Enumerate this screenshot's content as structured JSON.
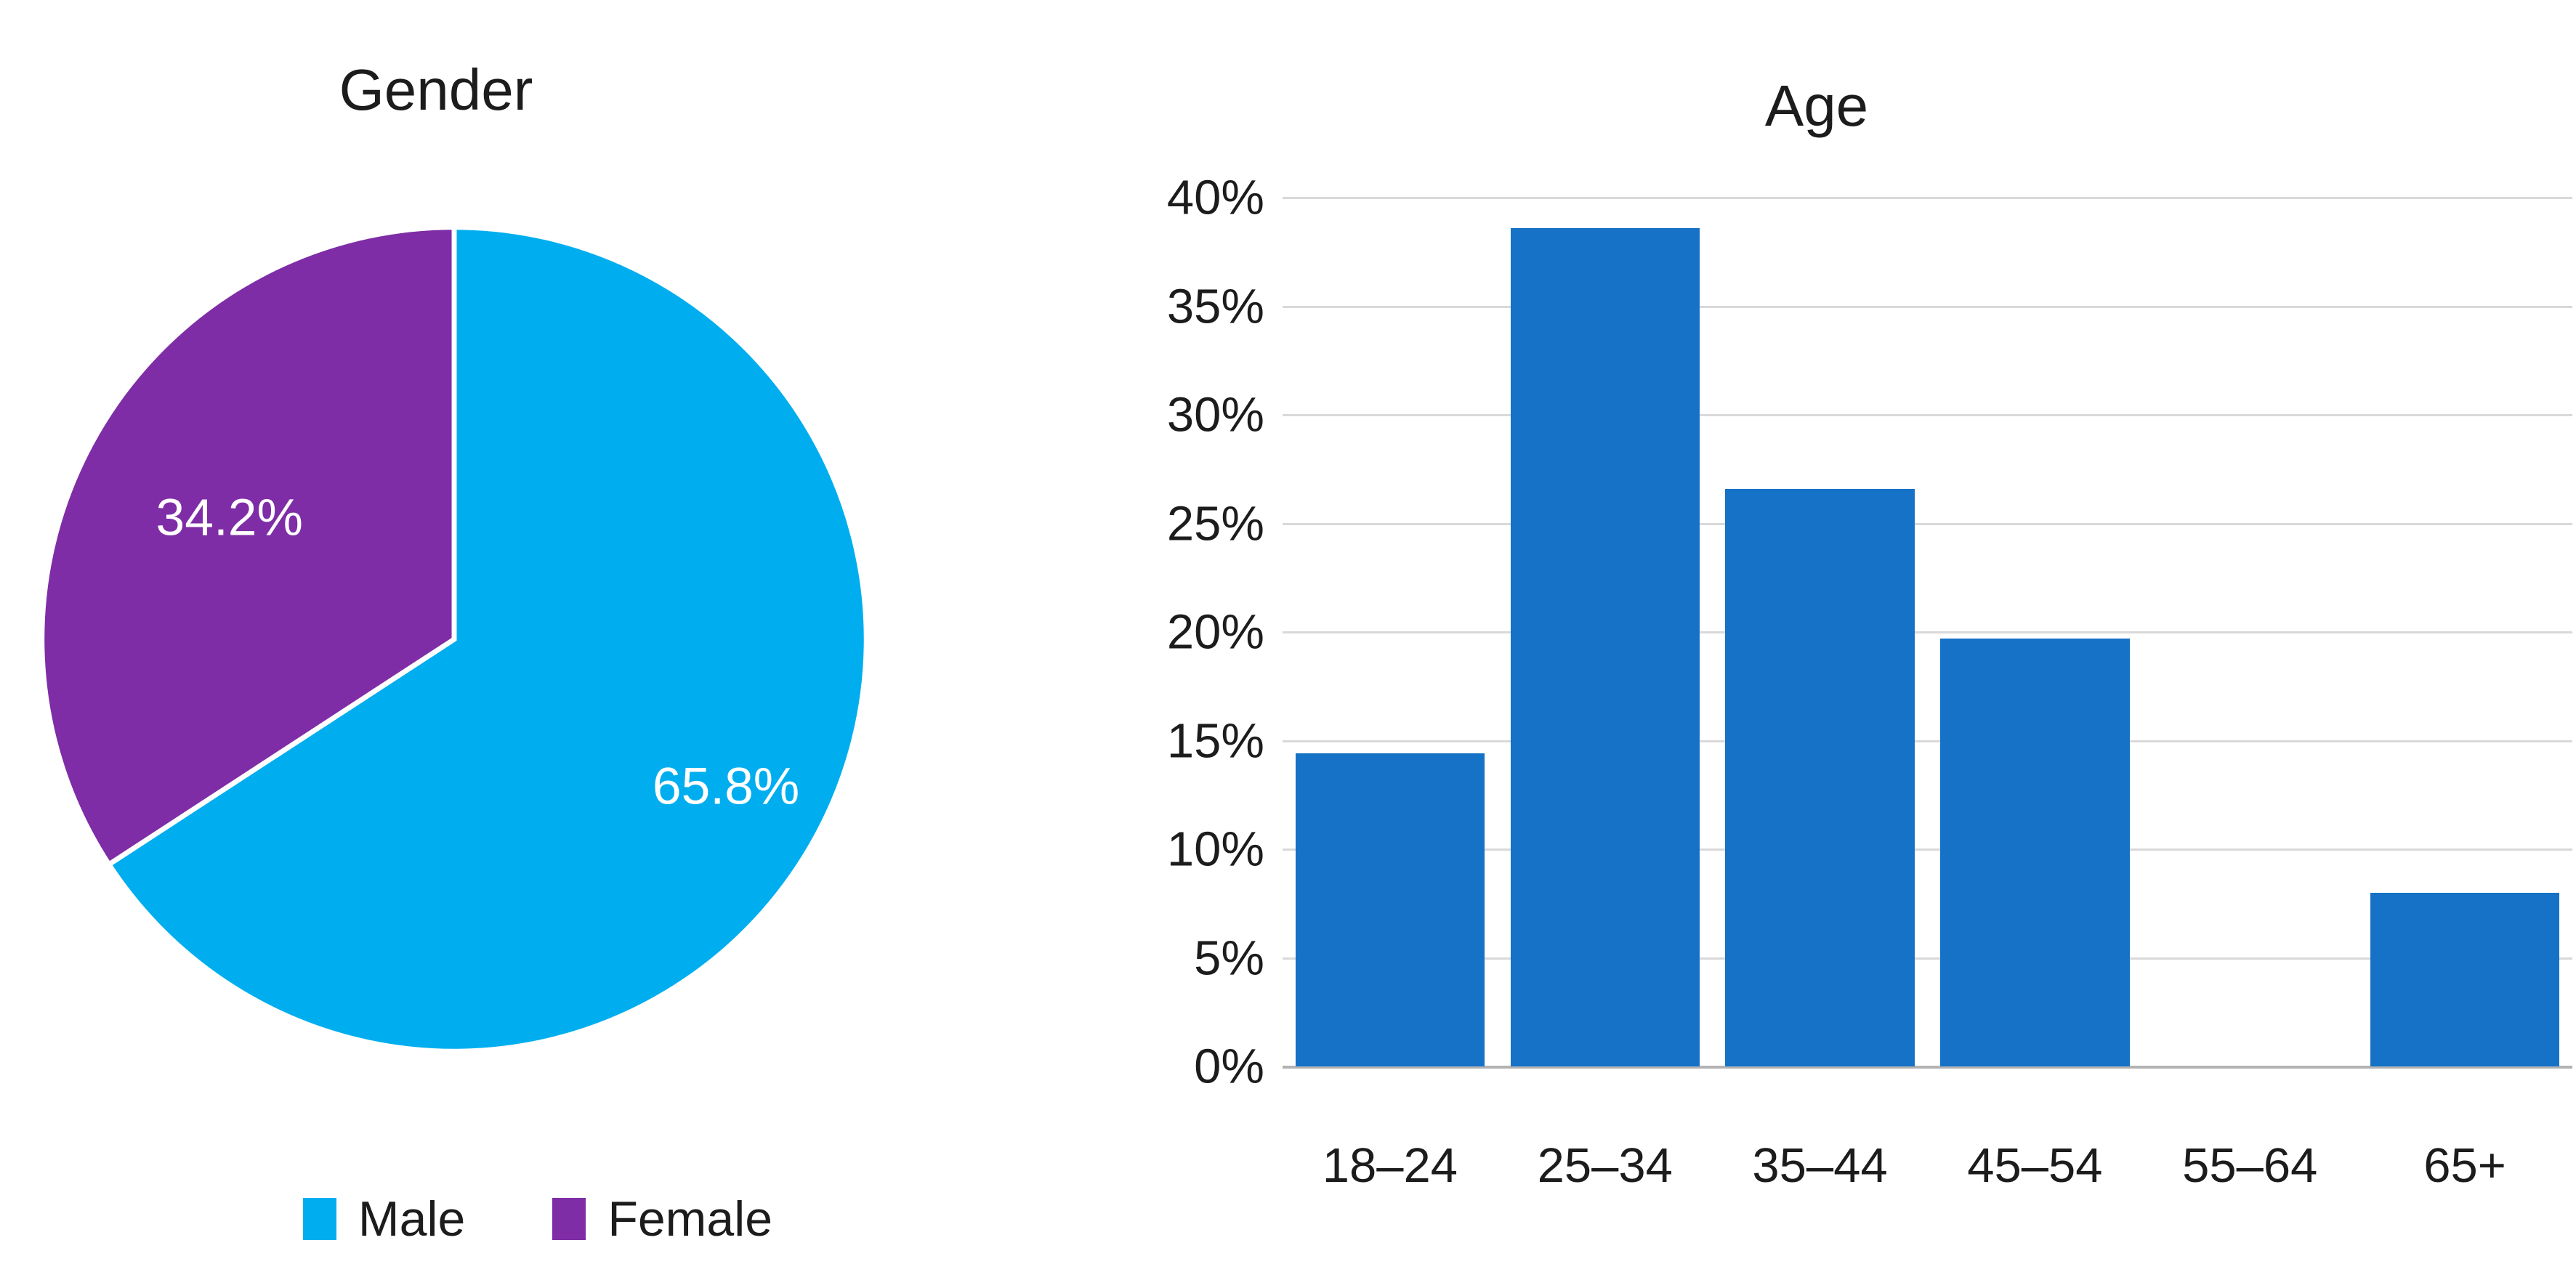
{
  "figure": {
    "background": "#ffffff",
    "text_color": "#1c1c1c"
  },
  "chart_data": [
    {
      "type": "pie",
      "title": "Gender",
      "labels": [
        "Male",
        "Female"
      ],
      "values": [
        65.8,
        34.2
      ],
      "value_labels": [
        "65.8%",
        "34.2%"
      ],
      "colors": [
        "#00aeef",
        "#7e2da6"
      ],
      "start_angle_deg": 0,
      "direction": "clockwise",
      "legend_position": "bottom"
    },
    {
      "type": "bar",
      "title": "Age",
      "categories": [
        "18–24",
        "25–34",
        "35–44",
        "45–54",
        "55–64",
        "65+"
      ],
      "values": [
        14.4,
        38.6,
        26.6,
        19.7,
        0,
        8.0
      ],
      "unit": "%",
      "ylim": [
        0,
        40
      ],
      "ytick_step": 5,
      "yticks": [
        "40%",
        "35%",
        "30%",
        "25%",
        "20%",
        "15%",
        "10%",
        "5%",
        "0%"
      ],
      "grid": true,
      "legend_position": "none",
      "bar_color": "#1572c6",
      "gridline_color": "#d9d9d9",
      "axis_line_color": "#b3b3b3"
    }
  ]
}
